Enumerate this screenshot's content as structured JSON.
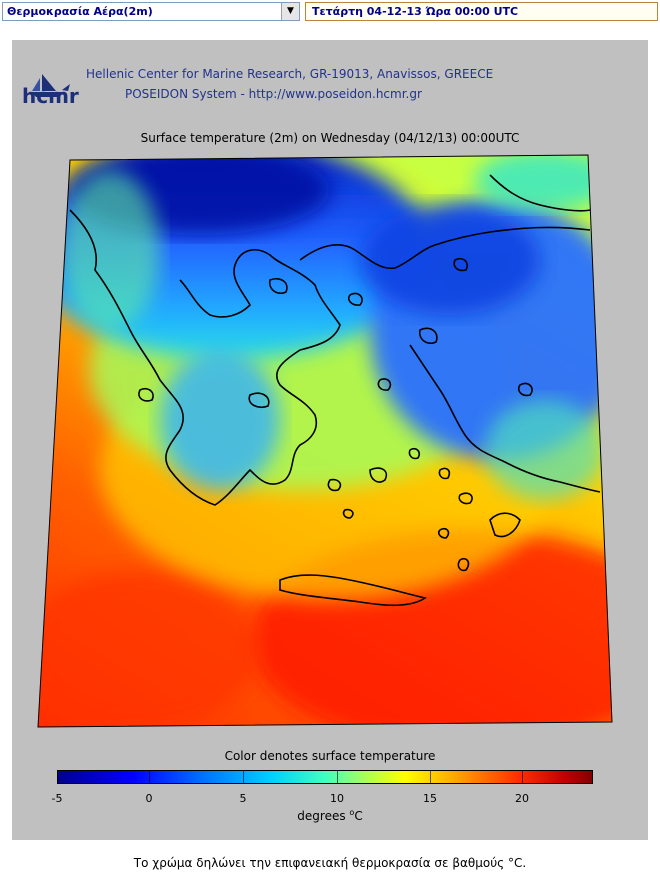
{
  "controls": {
    "variable_select": "Θερμοκρασία Αέρα(2m)",
    "date_select": "Τετάρτη 04-12-13 Ώρα 00:00 UTC"
  },
  "header": {
    "logo_text": "hcmr",
    "line1": "Hellenic Center for Marine Research, GR-19013, Anavissos, GREECE",
    "line2": "POSEIDON System - http://www.poseidon.hcmr.gr"
  },
  "map": {
    "title": "Surface temperature (2m) on Wednesday (04/12/13) 00:00UTC"
  },
  "colorbar": {
    "title": "Color denotes surface temperature",
    "ticks": [
      "-5",
      "0",
      "5",
      "10",
      "15",
      "20"
    ],
    "units_prefix": "degrees ",
    "units_deg": "o",
    "units_suffix": "C"
  },
  "footer": {
    "caption": "Το χρώμα δηλώνει την επιφανειακή θερμοκρασία σε βαθμούς °C."
  }
}
